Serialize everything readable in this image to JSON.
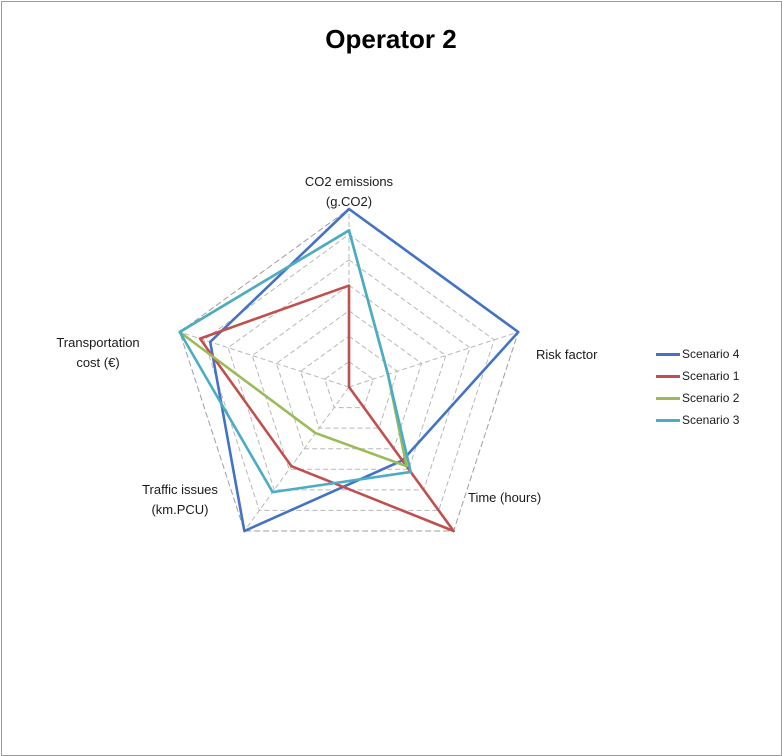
{
  "chart_data": {
    "type": "radar",
    "title": "Operator 2",
    "axes": [
      [
        "CO2 emissions",
        "(g.CO2)"
      ],
      [
        "Risk factor"
      ],
      [
        "Time (hours)"
      ],
      [
        "Traffic issues",
        "(km.PCU)"
      ],
      [
        "Transportation",
        "cost (€)"
      ]
    ],
    "rmax": 1.0,
    "grid_levels": 7,
    "grid": true,
    "legend_position": "right",
    "series": [
      {
        "name": "Scenario 4",
        "color": "#4472C4",
        "values": [
          1.0,
          1.0,
          0.51,
          1.0,
          0.82
        ]
      },
      {
        "name": "Scenario 1",
        "color": "#C0504D",
        "values": [
          0.57,
          0.0,
          1.0,
          0.55,
          0.88
        ]
      },
      {
        "name": "Scenario 2",
        "color": "#9BBB59",
        "values": [
          0.88,
          0.23,
          0.55,
          0.32,
          1.0
        ]
      },
      {
        "name": "Scenario 3",
        "color": "#4BACC6",
        "values": [
          0.88,
          0.23,
          0.59,
          0.73,
          1.0
        ]
      }
    ]
  }
}
